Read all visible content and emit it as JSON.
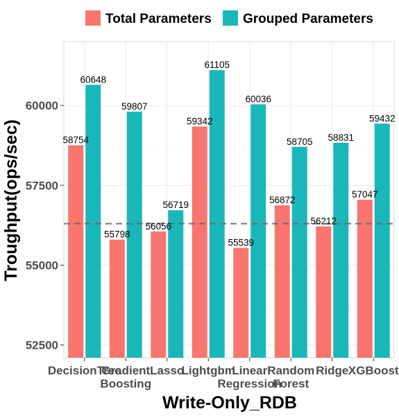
{
  "chart_data": {
    "type": "bar",
    "xlabel": "Write-Only_RDB",
    "ylabel": "Troughput(ops/sec)",
    "categories": [
      [
        "DecisionTree"
      ],
      [
        "Gradient",
        "Boosting"
      ],
      [
        "Lasso"
      ],
      [
        "Lightgbm"
      ],
      [
        "Linear",
        "Regression"
      ],
      [
        "Random",
        "Forest"
      ],
      [
        "Ridge"
      ],
      [
        "XGBoost"
      ]
    ],
    "series": [
      {
        "name": "Total Parameters",
        "color": "#F8766D",
        "values": [
          58754,
          55798,
          56056,
          59342,
          55539,
          56872,
          56212,
          57047
        ]
      },
      {
        "name": "Grouped Parameters",
        "color": "#00BFC4",
        "values": [
          60648,
          59807,
          56719,
          61105,
          60036,
          58705,
          58831,
          59432
        ]
      }
    ],
    "yticks": [
      52500,
      55000,
      57500,
      60000
    ],
    "ylim": [
      52100,
      62000
    ],
    "reference_line": {
      "value": 56300,
      "style": "dashed",
      "color": "#666666"
    },
    "legend_position": "top",
    "grid": true
  }
}
